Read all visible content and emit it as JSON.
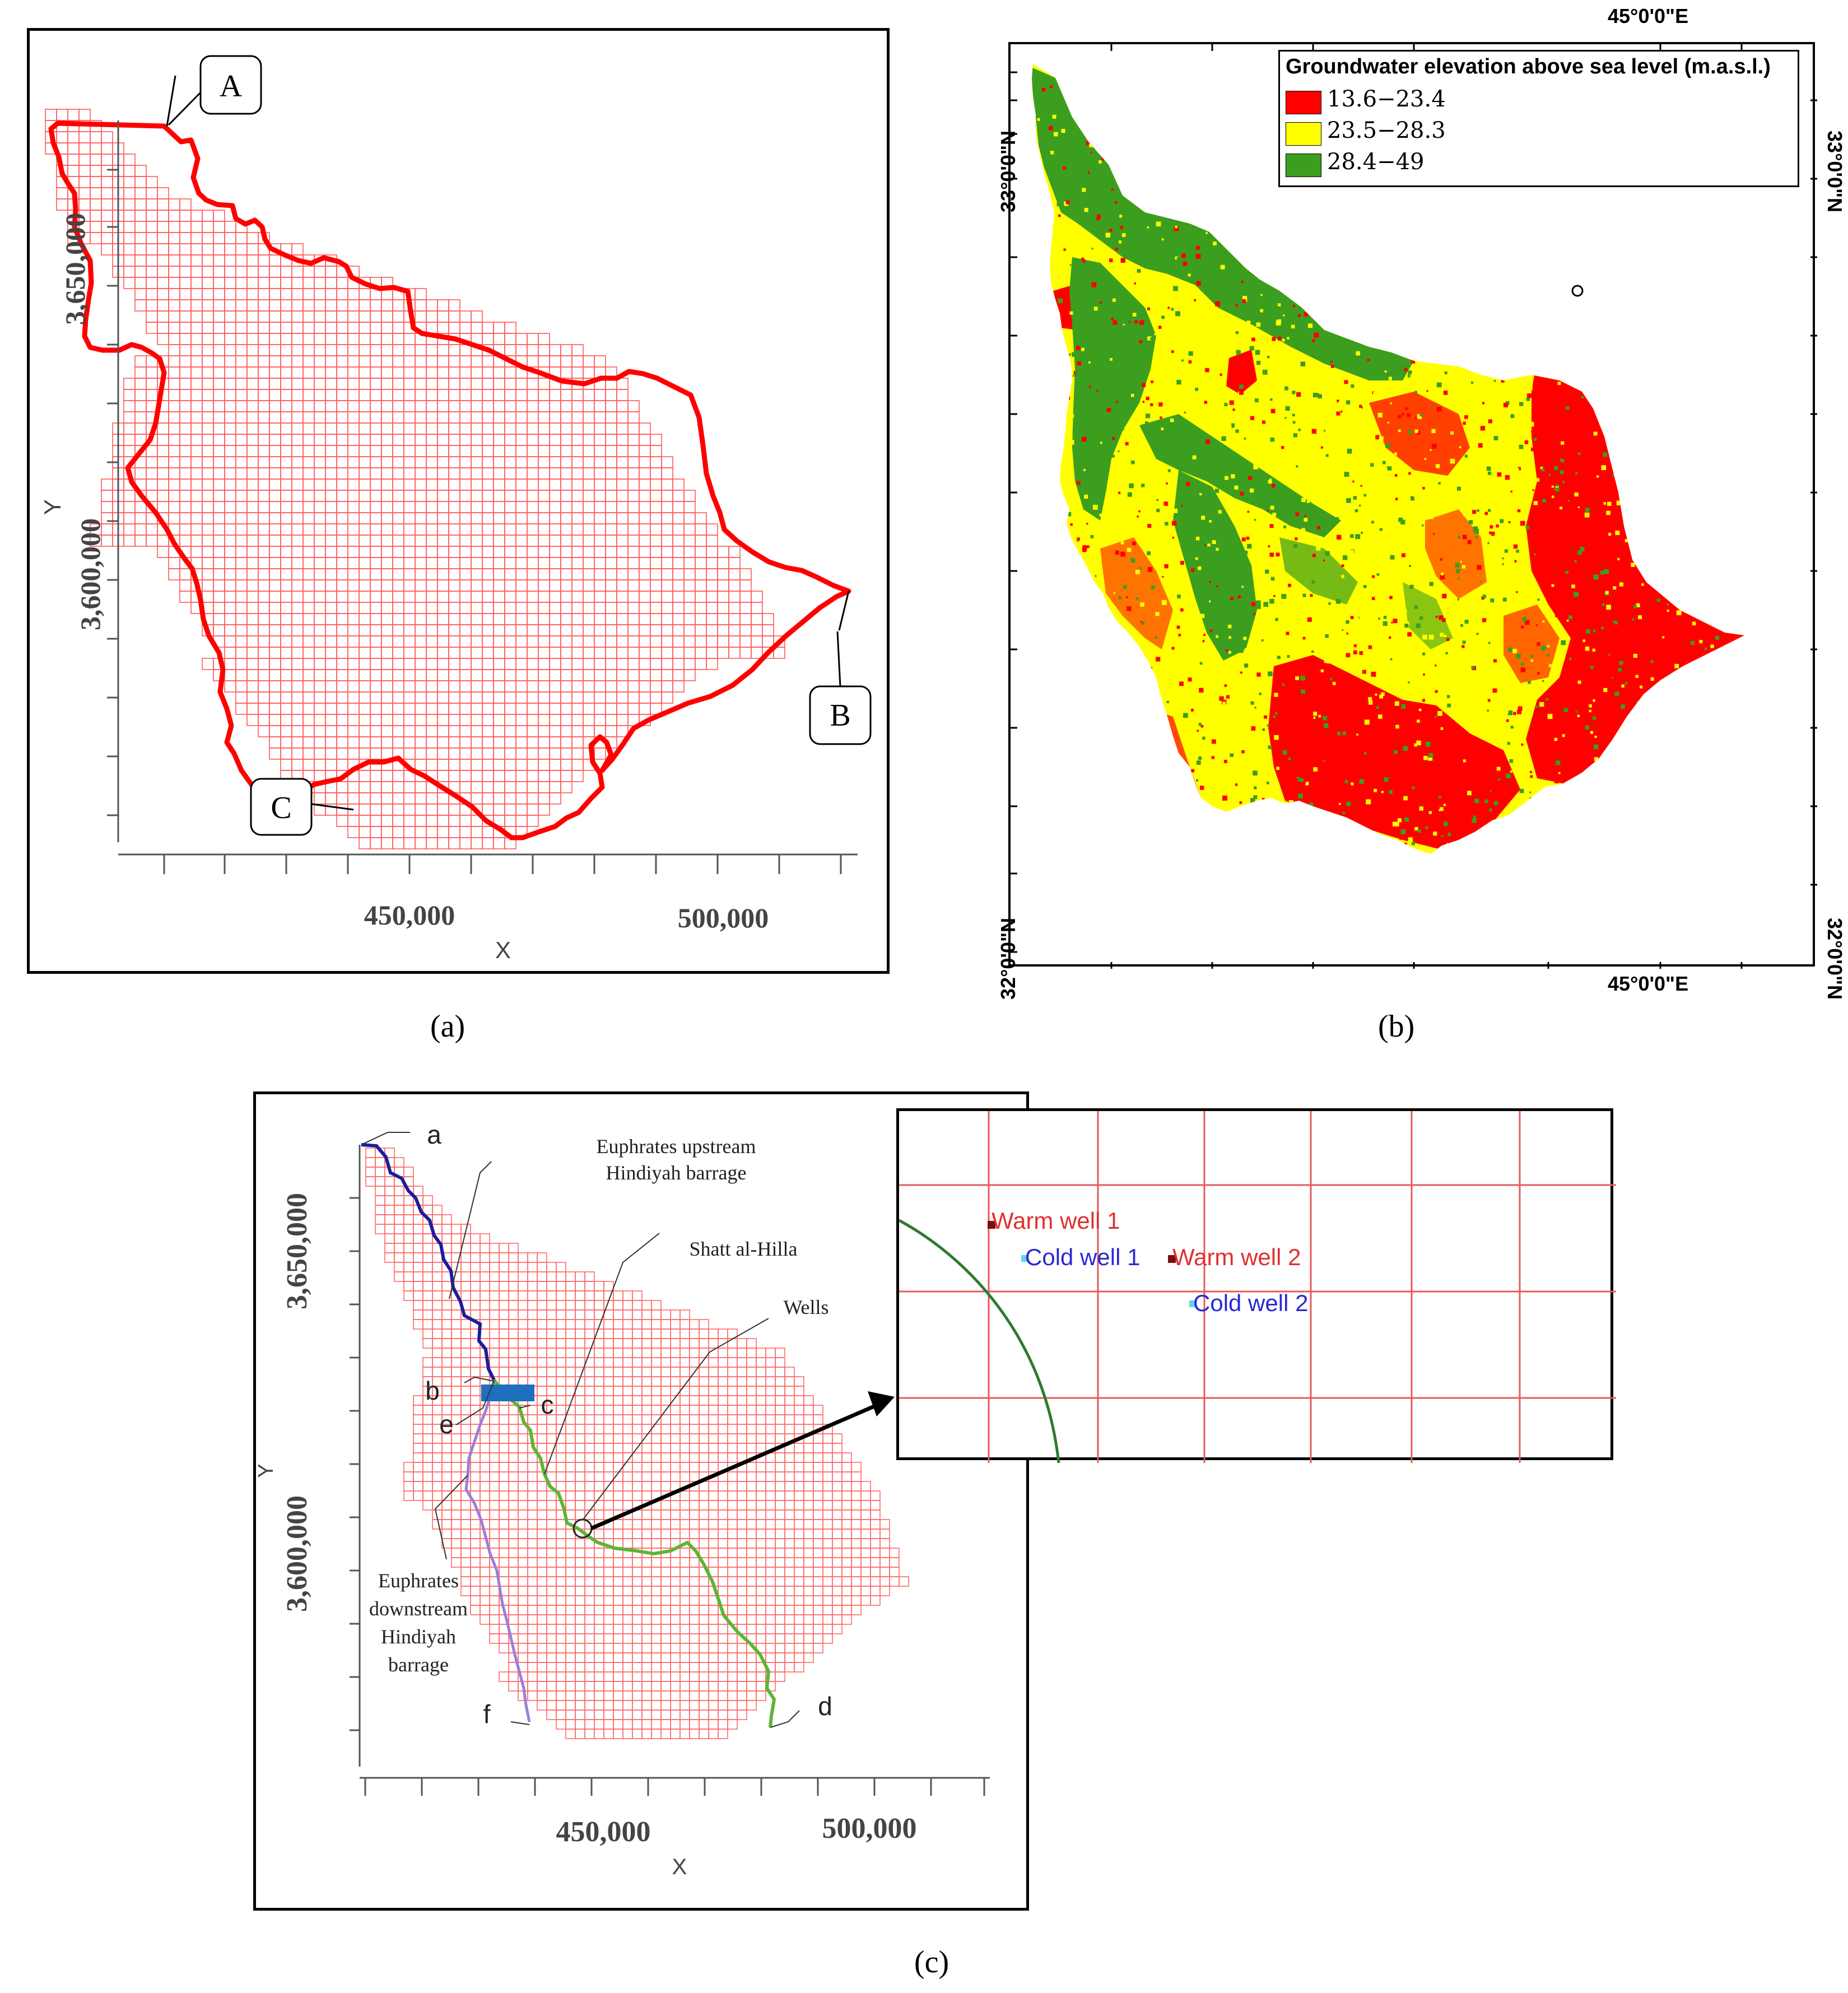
{
  "captions": {
    "a": "(a)",
    "b": "(b)",
    "c": "(c)"
  },
  "panel_a": {
    "x_axis_title": "X",
    "y_axis_title": "Y",
    "x_tick_labels": [
      "450,000",
      "500,000"
    ],
    "y_tick_labels": [
      "3,650,000",
      "3,600,000"
    ],
    "callouts": [
      "A",
      "B",
      "C"
    ],
    "colors": {
      "grid": "#ff5a5a",
      "boundary": "#ff0000"
    }
  },
  "panel_b": {
    "legend": {
      "title": "Groundwater elevation above sea level (m.a.s.l.)",
      "items": [
        {
          "label": "13.6−23.4",
          "color": "#ff0000"
        },
        {
          "label": "23.5−28.3",
          "color": "#ffff00"
        },
        {
          "label": "28.4−49",
          "color": "#3c9e1e"
        }
      ]
    },
    "graticule": {
      "lon_top": "45°0'0\"E",
      "lon_bottom": "45°0'0\"E",
      "lat_upper_left": "33°0'0\"N",
      "lat_lower_left": "32°0'0\"N",
      "lat_upper_right": "33°0'0\"N",
      "lat_lower_right": "32°0'0\"N"
    }
  },
  "panel_c": {
    "x_axis_title": "X",
    "y_axis_title": "Y",
    "x_tick_labels": [
      "450,000",
      "500,000"
    ],
    "y_tick_labels": [
      "3,650,000",
      "3,600,000"
    ],
    "point_labels": [
      "a",
      "b",
      "c",
      "d",
      "e",
      "f"
    ],
    "annotations": {
      "euphrates_upstream": [
        "Euphrates upstream",
        "Hindiyah barrage"
      ],
      "shatt_al_hilla": "Shatt al-Hilla",
      "wells": "Wells",
      "euphrates_downstream": [
        "Euphrates",
        "downstream",
        "Hindiyah",
        "barrage"
      ]
    },
    "inset_wells": {
      "warm_well_1": "Warm well 1",
      "cold_well_1": "Cold well 1",
      "warm_well_2": "Warm well 2",
      "cold_well_2": "Cold well 2"
    },
    "colors": {
      "grid": "#ff6b6b",
      "upstream_river": "#1c1c9c",
      "downstream_river": "#9b7fd6",
      "shatt_al_hilla": "#5db535",
      "barrage": "#1f6fbf",
      "warm_well": "#e03030",
      "cold_well": "#2a2ad0"
    }
  }
}
